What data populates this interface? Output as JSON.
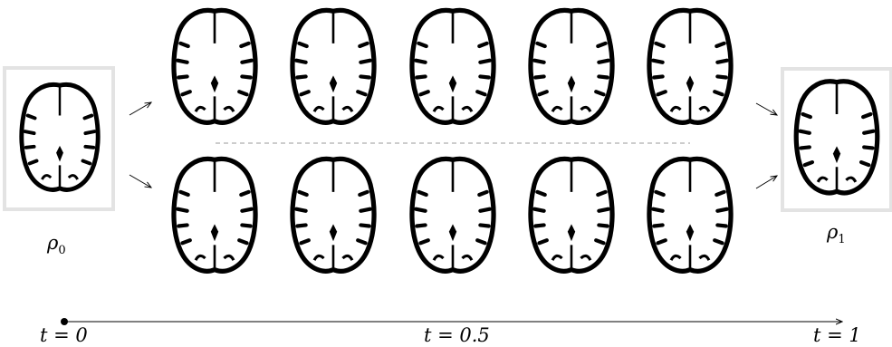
{
  "endpoints": {
    "start_label": "ρ",
    "start_sub": "0",
    "end_label": "ρ",
    "end_sub": "1"
  },
  "timeline": {
    "t0": "t = 0",
    "t05": "t = 0.5",
    "t1": "t = 1"
  },
  "rows": [
    {
      "frames": 5
    },
    {
      "frames": 5
    }
  ]
}
